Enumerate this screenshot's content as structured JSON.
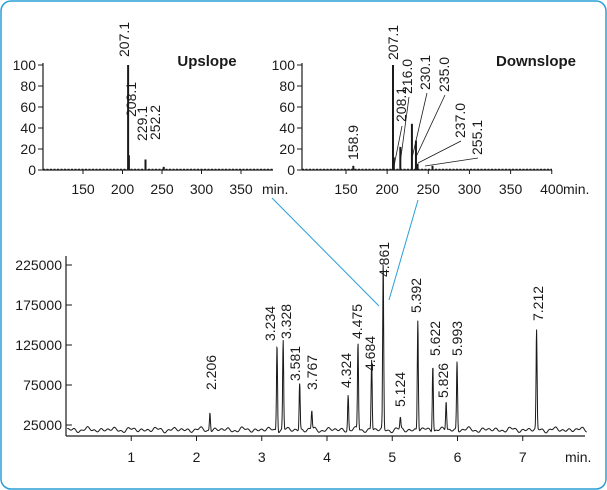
{
  "frame": {
    "border_color": "#2a9fd6"
  },
  "chart_data": [
    {
      "type": "bar",
      "title": "Upslope",
      "xlabel": "min.",
      "xlim": [
        120,
        400
      ],
      "ylim": [
        0,
        100
      ],
      "xticks": [
        150,
        200,
        250,
        300,
        350
      ],
      "yticks": [
        0,
        20,
        40,
        60,
        80,
        100
      ],
      "x": [
        207.1,
        208.1,
        229.1,
        252.2
      ],
      "values": [
        100,
        14,
        10,
        3
      ],
      "labels": [
        "207.1",
        "208.1",
        "229.1",
        "252.2"
      ]
    },
    {
      "type": "bar",
      "title": "Downslope",
      "xlabel": "min.",
      "xlim": [
        120,
        400
      ],
      "ylim": [
        0,
        100
      ],
      "xticks": [
        150,
        200,
        250,
        300,
        350,
        400
      ],
      "yticks": [
        0,
        20,
        40,
        60,
        80,
        100
      ],
      "x": [
        158.9,
        207.1,
        208.1,
        216.0,
        230.1,
        235.0,
        237.0,
        255.1
      ],
      "values": [
        4,
        100,
        12,
        22,
        44,
        28,
        6,
        4
      ],
      "labels": [
        "158.9",
        "207.1",
        "208.1",
        "216.0",
        "230.1",
        "235.0",
        "237.0",
        "255.1"
      ]
    },
    {
      "type": "line",
      "xlabel": "min.",
      "xlim": [
        0,
        8
      ],
      "ylim": [
        5000,
        240000
      ],
      "xticks": [
        1,
        2,
        3,
        4,
        5,
        6,
        7
      ],
      "yticks": [
        25000,
        75000,
        125000,
        175000,
        225000
      ],
      "ytick_labels": [
        "25000",
        "75000",
        "125000",
        "175000",
        "225000"
      ],
      "baseline": 19000,
      "peaks": [
        {
          "label": "2.206",
          "x": 2.206,
          "y": 42000
        },
        {
          "label": "3.234",
          "x": 3.234,
          "y": 128000
        },
        {
          "label": "3.328",
          "x": 3.328,
          "y": 130000
        },
        {
          "label": "3.581",
          "x": 3.581,
          "y": 78000
        },
        {
          "label": "3.767",
          "x": 3.767,
          "y": 42000
        },
        {
          "label": "4.324",
          "x": 4.324,
          "y": 63000
        },
        {
          "label": "4.475",
          "x": 4.475,
          "y": 127000
        },
        {
          "label": "4.684",
          "x": 4.684,
          "y": 107000
        },
        {
          "label": "4.861",
          "x": 4.861,
          "y": 225000
        },
        {
          "label": "5.124",
          "x": 5.124,
          "y": 33000
        },
        {
          "label": "5.392",
          "x": 5.392,
          "y": 157000
        },
        {
          "label": "5.622",
          "x": 5.622,
          "y": 102000
        },
        {
          "label": "5.826",
          "x": 5.826,
          "y": 55000
        },
        {
          "label": "5.993",
          "x": 5.993,
          "y": 105000
        },
        {
          "label": "7.212",
          "x": 7.212,
          "y": 142000
        }
      ]
    }
  ]
}
